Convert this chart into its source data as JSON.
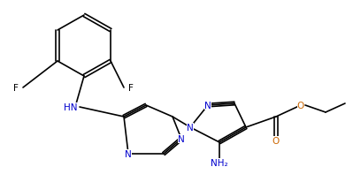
{
  "title": "",
  "bg_color": "#ffffff",
  "bond_color": "#000000",
  "double_bond_color": "#000000",
  "atom_colors": {
    "N": "#0000cd",
    "O": "#cc6600",
    "F": "#000000",
    "C": "#000000",
    "H": "#000000"
  },
  "line_width": 1.2,
  "font_size": 7.5
}
